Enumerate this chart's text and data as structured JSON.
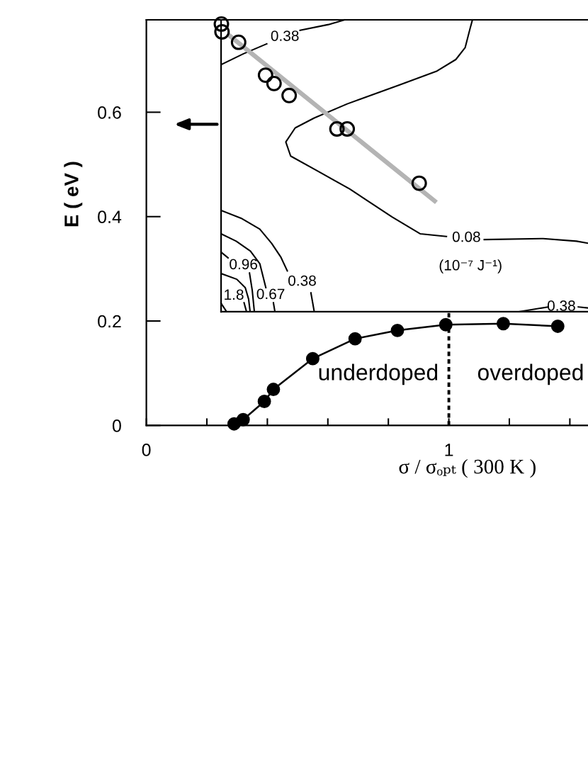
{
  "chart_data": {
    "type": "line",
    "xlabel": "σ / σₒₚₜ ( 300 K )",
    "ylabel": "E ( eV )",
    "x": [
      0.29,
      0.32,
      0.39,
      0.42,
      0.55,
      0.69,
      0.83,
      0.99,
      1.18,
      1.36
    ],
    "series": [
      {
        "color": "#000000",
        "marker": "circle",
        "values": [
          0.003,
          0.011,
          0.046,
          0.069,
          0.128,
          0.166,
          0.182,
          0.193,
          0.195,
          0.19
        ]
      },
      {
        "type": "line",
        "name": "0.38",
        "color": "#000000",
        "x": [
          0.25,
          0.321,
          0.398,
          0.458,
          0.508,
          0.602,
          0.655
        ],
        "values": [
          0.692,
          0.712,
          0.731,
          null,
          0.757,
          0.768,
          0.777
        ]
      },
      {
        "type": "line",
        "name": "0.08",
        "color": "#000000",
        "x": [
          1.078,
          1.07,
          1.054,
          1.023,
          0.961,
          0.836,
          0.664,
          0.555,
          0.492,
          0.461,
          0.477,
          0.561,
          0.672,
          0.813,
          0.906,
          0.992,
          1.058,
          1.117,
          1.312,
          1.422,
          1.46
        ],
        "values": [
          0.777,
          0.76,
          0.724,
          0.701,
          0.679,
          0.652,
          0.616,
          0.589,
          0.57,
          0.543,
          0.516,
          0.489,
          0.453,
          0.399,
          0.367,
          0.362,
          null,
          0.356,
          0.358,
          0.353,
          0.349
        ]
      },
      {
        "type": "line",
        "name": "0.38",
        "color": "#000000",
        "x": [
          1.234,
          1.328,
          1.372,
          1.428,
          1.46
        ],
        "values": [
          0.218,
          0.227,
          null,
          0.227,
          0.225
        ]
      },
      {
        "type": "line",
        "name": "0.38",
        "color": "#000000",
        "x": [
          0.247,
          0.313,
          0.375,
          0.414,
          0.445,
          0.466,
          0.515,
          0.544,
          0.555
        ],
        "values": [
          0.412,
          0.397,
          0.376,
          0.349,
          0.322,
          0.296,
          null,
          0.254,
          0.218
        ]
      },
      {
        "type": "line",
        "name": "0.67",
        "color": "#000000",
        "x": [
          0.247,
          0.297,
          0.344,
          0.375,
          0.395,
          0.411,
          0.42,
          0.425
        ],
        "values": [
          0.367,
          0.353,
          0.334,
          0.31,
          0.264,
          null,
          0.235,
          0.218
        ]
      },
      {
        "type": "line",
        "name": "0.96",
        "color": "#000000",
        "x": [
          0.247,
          0.27,
          0.321,
          0.341,
          0.35,
          0.357
        ],
        "values": [
          0.332,
          0.321,
          null,
          0.292,
          0.259,
          0.218
        ]
      },
      {
        "type": "line",
        "color": "#000000",
        "x": [
          0.247,
          0.299,
          0.327,
          0.338,
          0.343
        ],
        "values": [
          0.291,
          0.28,
          0.264,
          0.242,
          0.218
        ]
      },
      {
        "type": "line",
        "name": "1.8",
        "color": "#000000",
        "x": [
          0.323,
          0.331
        ],
        "values": [
          0.235,
          0.218
        ]
      },
      {
        "type": "line",
        "color": "#000000",
        "x": [
          0.247,
          0.265
        ],
        "values": [
          0.234,
          0.218
        ]
      },
      {
        "type": "line",
        "color": "#b4b4b4",
        "x": [
          0.274,
          0.953
        ],
        "values": [
          0.747,
          0.43
        ]
      },
      {
        "type": "scatter",
        "color": "#000000",
        "marker": "circle",
        "x": [
          0.248,
          0.25,
          0.305,
          0.394,
          0.422,
          0.472,
          0.63,
          0.664,
          0.902
        ],
        "values": [
          0.769,
          0.754,
          0.734,
          0.671,
          0.655,
          0.632,
          0.568,
          0.568,
          0.464
        ]
      }
    ],
    "xlim": [
      0,
      1.46
    ],
    "xticks": [
      0,
      {
        "value": 0.2,
        "label": null
      },
      {
        "value": 0.4,
        "label": null
      },
      {
        "value": 0.6,
        "label": null
      },
      {
        "value": 0.8,
        "label": null
      },
      1,
      {
        "value": 1.2,
        "label": null
      },
      {
        "value": 1.4,
        "label": null
      }
    ],
    "ylim": [
      0,
      0.777
    ],
    "yticks": [
      0,
      0.2,
      0.4,
      0.6
    ],
    "ref_lines": [
      {
        "axis": "x",
        "value": 1,
        "line_style": "dotted"
      },
      {
        "axis": "y",
        "value": 0.218
      },
      {
        "axis": "x",
        "value": 0.247
      }
    ],
    "annotations": [
      "underdoped",
      "overdoped",
      "(10⁻⁷ J⁻¹)"
    ]
  }
}
